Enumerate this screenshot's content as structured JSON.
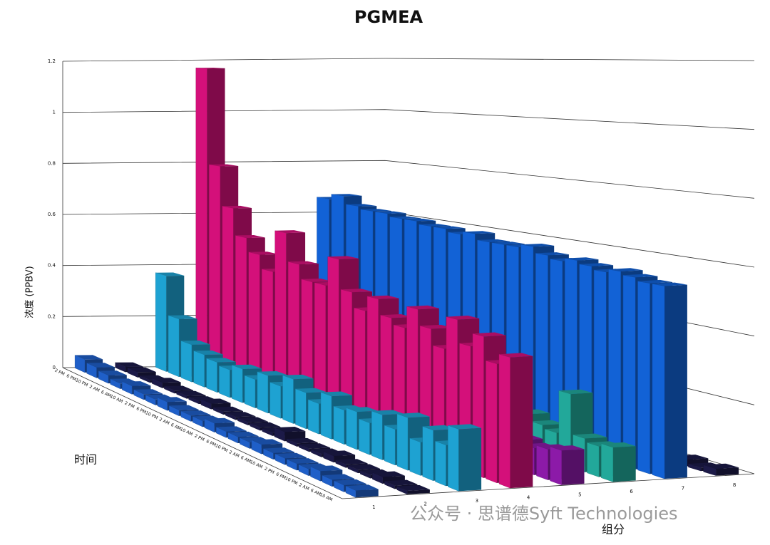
{
  "chart_data": {
    "type": "bar3d",
    "title": "PGMEA",
    "y_label": "浓度 (PPBV)",
    "x_label": "时间",
    "z_label": "组分",
    "watermark": "公众号 · 思谱德Syft Technologies",
    "ylim": [
      0,
      1.2
    ],
    "yticks": [
      0,
      0.2,
      0.4,
      0.6,
      0.8,
      1,
      1.2
    ],
    "grid": true,
    "categories": [
      "2 PM",
      "6 PM",
      "10 PM",
      "2 AM",
      "6 AM",
      "10 AM",
      "2 PM",
      "6 PM",
      "10 PM",
      "2 AM",
      "6 AM",
      "10 AM",
      "2 PM",
      "6 PM",
      "10 PM",
      "2 AM",
      "6 AM",
      "10 AM",
      "2 PM",
      "6 PM",
      "10 PM",
      "2 AM",
      "6 AM",
      "10 AM"
    ],
    "series": [
      {
        "name": "1",
        "color": "#1f5fc8",
        "values": [
          0.05,
          0.04,
          0.03,
          0.02,
          0.03,
          0.02,
          0.02,
          0.03,
          0.02,
          0.02,
          0.02,
          0.03,
          0.02,
          0.02,
          0.02,
          0.03,
          0.02,
          0.02,
          0.02,
          0.02,
          0.03,
          0.02,
          0.02,
          0.02
        ]
      },
      {
        "name": "2",
        "color": "#1c1a48",
        "values": [
          0.02,
          0.02,
          0.01,
          0.02,
          0.01,
          0.01,
          0.01,
          0.02,
          0.01,
          0.01,
          0.01,
          0.01,
          0.01,
          0.03,
          0.01,
          0.01,
          0.01,
          0.02,
          0.01,
          0.01,
          0.01,
          0.02,
          0.01,
          0.01
        ]
      },
      {
        "name": "3",
        "color": "#1ea2d2",
        "values": [
          0.37,
          0.22,
          0.14,
          0.12,
          0.11,
          0.1,
          0.12,
          0.1,
          0.13,
          0.11,
          0.15,
          0.12,
          0.1,
          0.14,
          0.11,
          0.12,
          0.1,
          0.14,
          0.11,
          0.16,
          0.1,
          0.15,
          0.12,
          0.18
        ]
      },
      {
        "name": "4",
        "color": "#d4107a",
        "values": [
          1.17,
          0.8,
          0.65,
          0.55,
          0.5,
          0.45,
          0.6,
          0.5,
          0.45,
          0.45,
          0.55,
          0.45,
          0.4,
          0.45,
          0.4,
          0.38,
          0.45,
          0.4,
          0.35,
          0.45,
          0.38,
          0.42,
          0.35,
          0.38
        ]
      },
      {
        "name": "5",
        "color": "#8c1aa8",
        "values": [
          0.05,
          0.04,
          0.04,
          0.03,
          0.04,
          0.05,
          0.04,
          0.03,
          0.04,
          0.05,
          0.04,
          0.04,
          0.03,
          0.05,
          0.04,
          0.04,
          0.05,
          0.04,
          0.04,
          0.1,
          0.09,
          0.08,
          0.09,
          0.1
        ]
      },
      {
        "name": "6",
        "color": "#22a89a",
        "values": [
          0.08,
          0.1,
          0.07,
          0.09,
          0.12,
          0.08,
          0.1,
          0.2,
          0.09,
          0.1,
          0.08,
          0.12,
          0.1,
          0.09,
          0.2,
          0.1,
          0.08,
          0.12,
          0.1,
          0.09,
          0.22,
          0.1,
          0.09,
          0.1
        ]
      },
      {
        "name": "7",
        "color": "#1262d6",
        "values": [
          0.66,
          0.68,
          0.65,
          0.64,
          0.64,
          0.63,
          0.63,
          0.62,
          0.62,
          0.61,
          0.62,
          0.6,
          0.6,
          0.6,
          0.61,
          0.59,
          0.58,
          0.59,
          0.58,
          0.57,
          0.58,
          0.57,
          0.56,
          0.56
        ]
      },
      {
        "name": "8",
        "color": "#1c1a48",
        "values": [
          0.02,
          0.01,
          0.01,
          0.02,
          0.01,
          0.01,
          0.02,
          0.01,
          0.01,
          0.01,
          0.02,
          0.01,
          0.01,
          0.01,
          0.02,
          0.01,
          0.01,
          0.01,
          0.02,
          0.01,
          0.01,
          0.02,
          0.01,
          0.02
        ]
      }
    ]
  }
}
